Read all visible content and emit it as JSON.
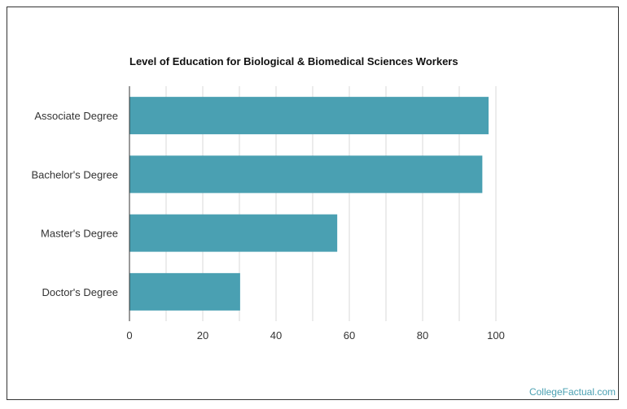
{
  "chart_data": {
    "type": "bar",
    "orientation": "horizontal",
    "title": "Level of Education for Biological & Biomedical Sciences Workers",
    "categories": [
      "Associate Degree",
      "Bachelor's Degree",
      "Master's Degree",
      "Doctor's Degree"
    ],
    "values": [
      98,
      96.3,
      56.7,
      30.2
    ],
    "xlim": [
      0,
      100
    ],
    "x_ticks": [
      0,
      20,
      40,
      60,
      80,
      100
    ],
    "grid": true,
    "bar_color": "#4aa0b2",
    "grid_color": "#d9d9d9"
  },
  "watermark": "CollegeFactual.com"
}
